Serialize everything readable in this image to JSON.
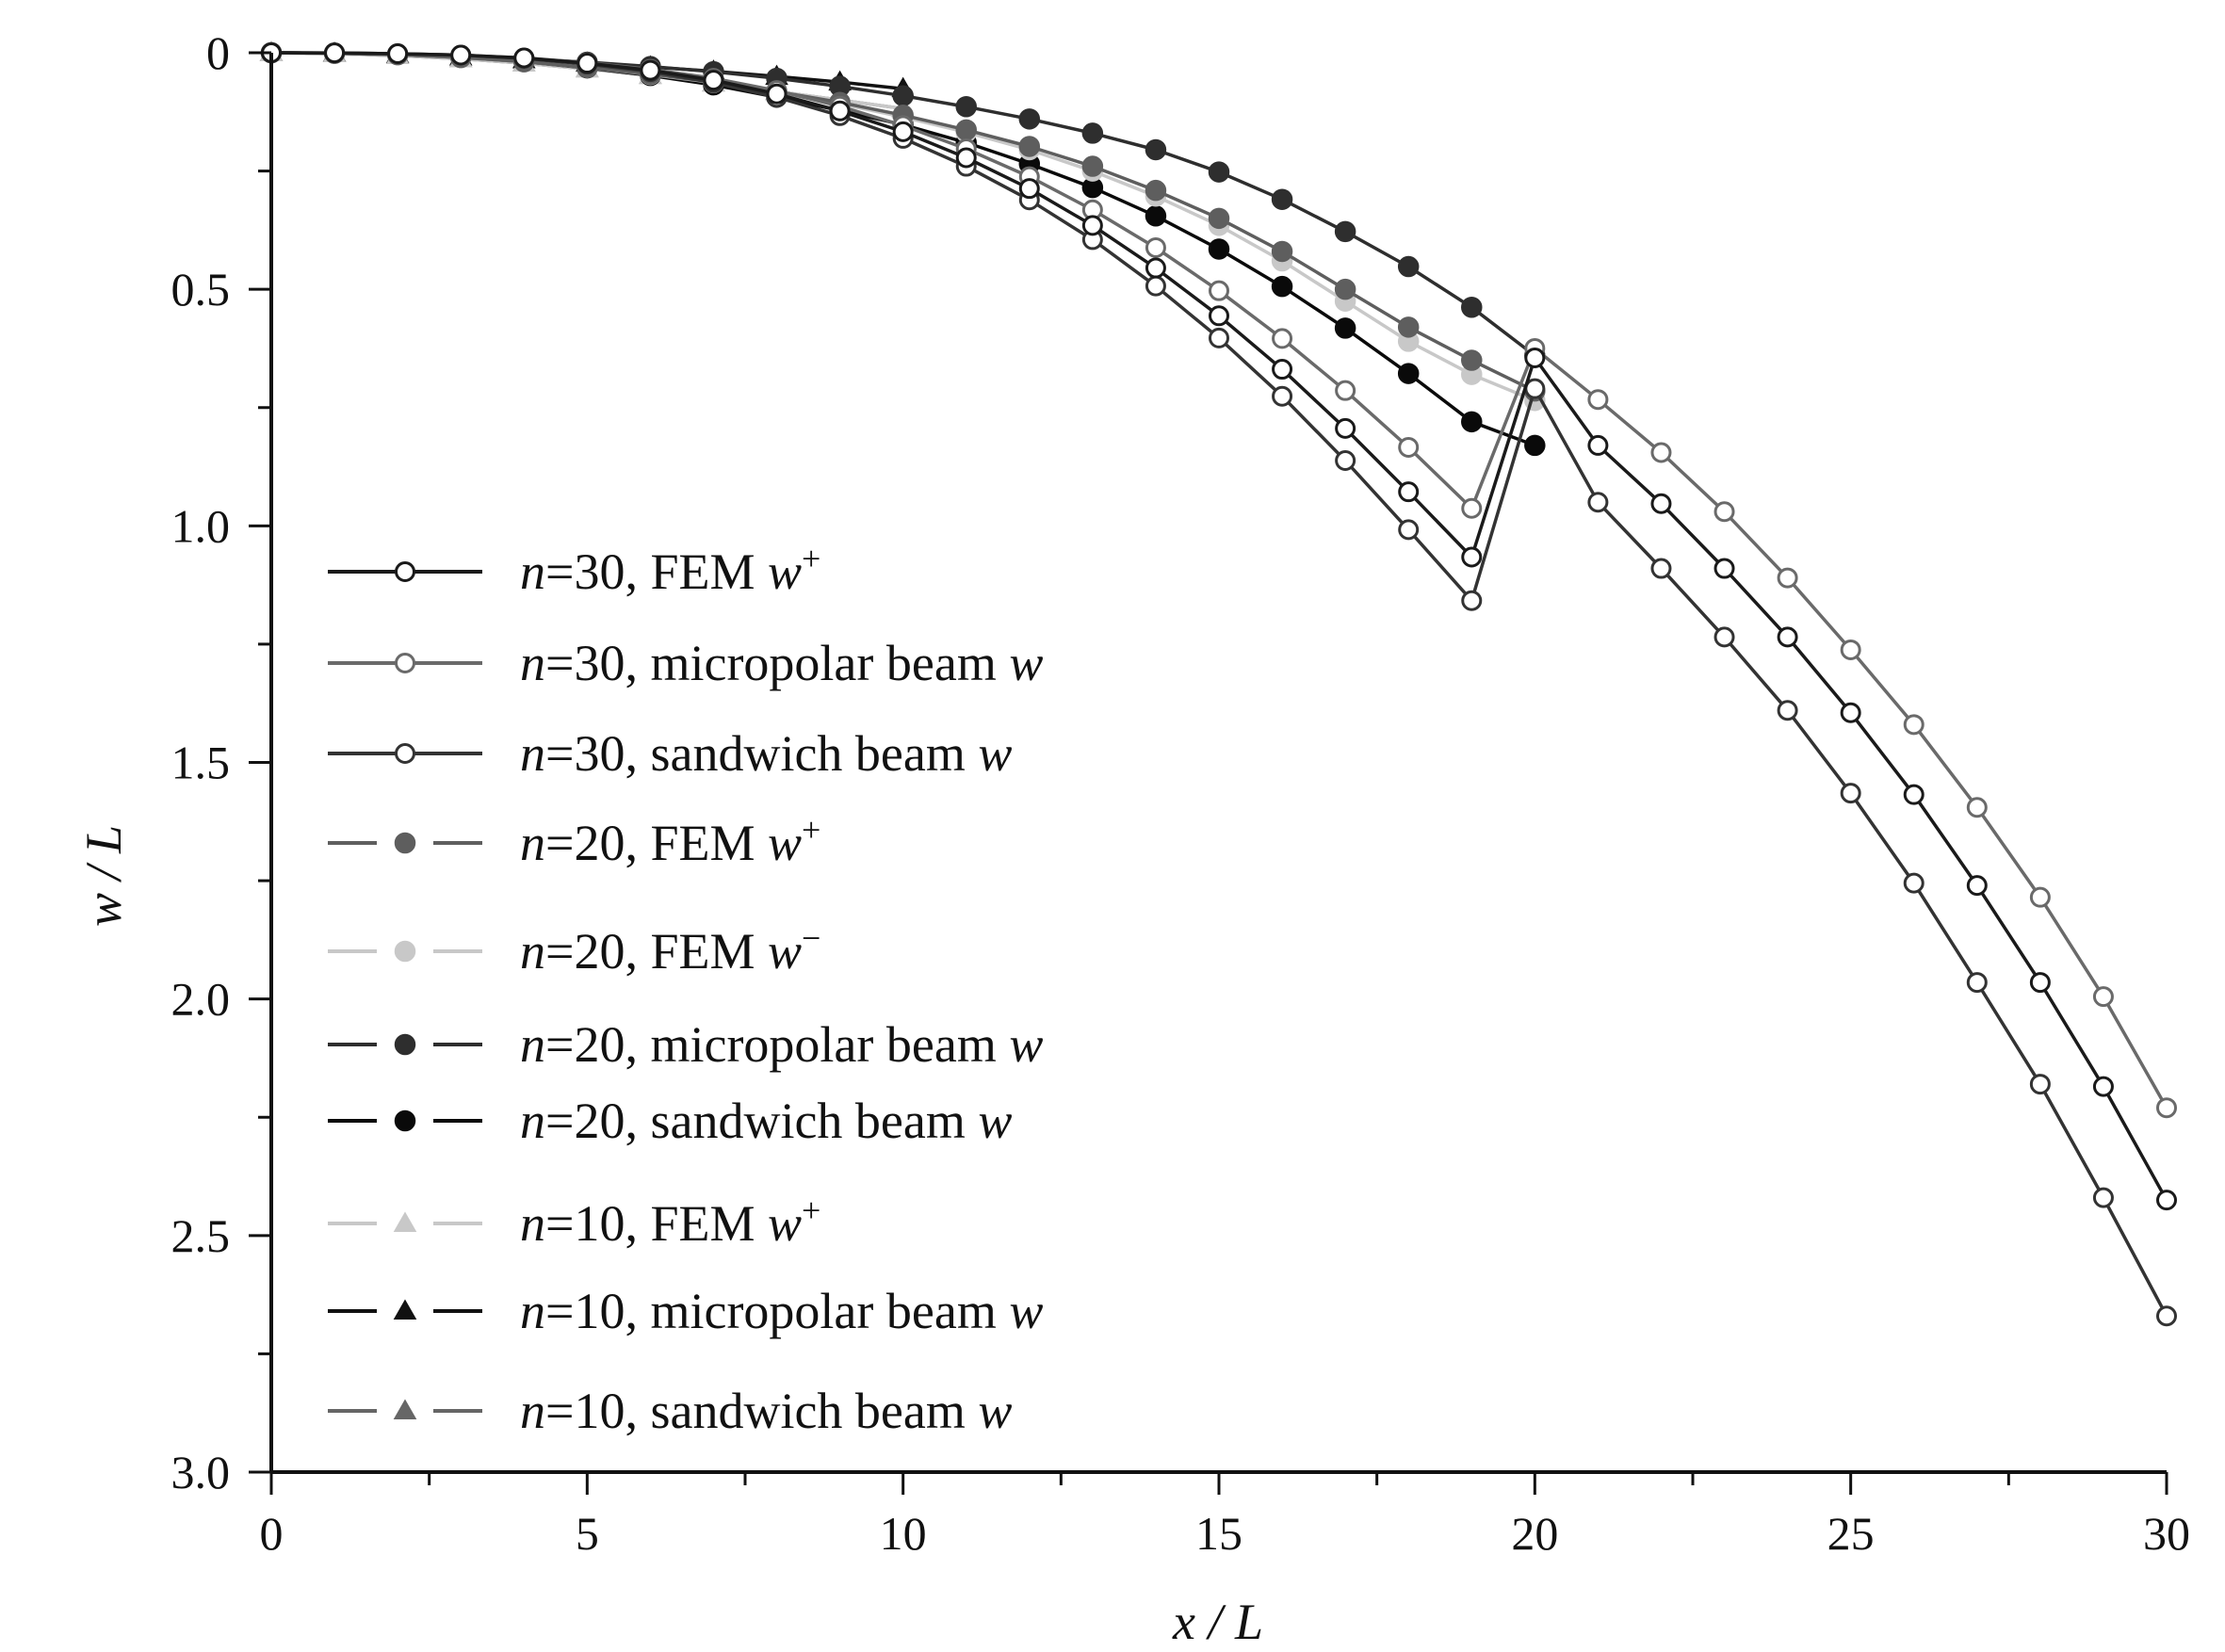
{
  "chart_data": {
    "type": "line",
    "title": "",
    "xlabel": "x / L",
    "ylabel": "w / L",
    "xlim": [
      0,
      30
    ],
    "ylim": [
      0,
      3.0
    ],
    "y_inverted": true,
    "x_ticks": [
      0,
      5,
      10,
      15,
      20,
      25,
      30
    ],
    "y_ticks": [
      "0",
      "0.5",
      "1.0",
      "1.5",
      "2.0",
      "2.5",
      "3.0"
    ],
    "grid": false,
    "legend_position": "left",
    "series": [
      {
        "n": "n",
        "eq": "=30, ",
        "desc": "FEM ",
        "v": "w",
        "sup": "+",
        "color": "#1a1a1a",
        "marker": "circle-open",
        "dashed": false,
        "x": [
          0,
          1,
          2,
          3,
          4,
          5,
          6,
          7,
          8,
          9,
          10,
          11,
          12,
          13,
          14,
          15,
          16,
          17,
          18,
          19,
          20,
          21,
          22,
          23,
          24,
          25,
          26,
          27,
          28,
          29,
          30
        ],
        "y": [
          0,
          0.0003,
          0.002,
          0.005,
          0.011,
          0.022,
          0.037,
          0.058,
          0.087,
          0.123,
          0.167,
          0.222,
          0.287,
          0.365,
          0.455,
          0.556,
          0.669,
          0.794,
          0.928,
          1.066,
          0.645,
          0.83,
          0.953,
          1.09,
          1.235,
          1.395,
          1.568,
          1.76,
          1.965,
          2.185,
          2.425
        ]
      },
      {
        "n": "n",
        "eq": "=30, ",
        "desc": "micropolar beam ",
        "v": "w",
        "sup": "",
        "color": "#6a6a6a",
        "marker": "circle-open",
        "dashed": false,
        "x": [
          0,
          1,
          2,
          3,
          4,
          5,
          6,
          7,
          8,
          9,
          10,
          11,
          12,
          13,
          14,
          15,
          16,
          17,
          18,
          19,
          20,
          21,
          22,
          23,
          24,
          25,
          26,
          27,
          28,
          29,
          30
        ],
        "y": [
          0,
          0.0003,
          0.002,
          0.005,
          0.011,
          0.021,
          0.035,
          0.054,
          0.08,
          0.113,
          0.154,
          0.203,
          0.262,
          0.332,
          0.412,
          0.503,
          0.604,
          0.714,
          0.834,
          0.963,
          0.625,
          0.733,
          0.845,
          0.97,
          1.11,
          1.262,
          1.42,
          1.595,
          1.785,
          1.995,
          2.23
        ]
      },
      {
        "n": "n",
        "eq": "=30, ",
        "desc": "sandwich beam ",
        "v": "w",
        "sup": "",
        "color": "#333333",
        "marker": "circle-open",
        "dashed": false,
        "x": [
          0,
          1,
          2,
          3,
          4,
          5,
          6,
          7,
          8,
          9,
          10,
          11,
          12,
          13,
          14,
          15,
          16,
          17,
          18,
          19,
          20,
          21,
          22,
          23,
          24,
          25,
          26,
          27,
          28,
          29,
          30
        ],
        "y": [
          0,
          0.0003,
          0.002,
          0.005,
          0.012,
          0.024,
          0.04,
          0.063,
          0.094,
          0.133,
          0.181,
          0.24,
          0.311,
          0.395,
          0.493,
          0.603,
          0.726,
          0.862,
          1.008,
          1.158,
          0.71,
          0.95,
          1.09,
          1.235,
          1.39,
          1.565,
          1.755,
          1.965,
          2.18,
          2.42,
          2.67
        ]
      },
      {
        "n": "n",
        "eq": "=20, ",
        "desc": "FEM ",
        "v": "w",
        "sup": "+",
        "color": "#5e5e5e",
        "marker": "circle-filled",
        "dashed": true,
        "x": [
          0,
          1,
          2,
          3,
          4,
          5,
          6,
          7,
          8,
          9,
          10,
          11,
          12,
          13,
          14,
          15,
          16,
          17,
          18,
          19,
          20
        ],
        "y": [
          0,
          0.001,
          0.004,
          0.01,
          0.019,
          0.031,
          0.045,
          0.062,
          0.082,
          0.105,
          0.132,
          0.163,
          0.198,
          0.24,
          0.291,
          0.35,
          0.42,
          0.5,
          0.58,
          0.65,
          0.715
        ]
      },
      {
        "n": "n",
        "eq": "=20, ",
        "desc": "FEM ",
        "v": "w",
        "sup": "−",
        "color": "#c8c8c8",
        "marker": "circle-filled",
        "dashed": true,
        "x": [
          0,
          1,
          2,
          3,
          4,
          5,
          6,
          7,
          8,
          9,
          10,
          11,
          12,
          13,
          14,
          15,
          16,
          17,
          18,
          19,
          20
        ],
        "y": [
          0,
          0.001,
          0.004,
          0.01,
          0.019,
          0.031,
          0.046,
          0.063,
          0.084,
          0.108,
          0.136,
          0.168,
          0.205,
          0.25,
          0.303,
          0.365,
          0.44,
          0.525,
          0.61,
          0.68,
          0.735
        ]
      },
      {
        "n": "n",
        "eq": "=20, ",
        "desc": "micropolar beam ",
        "v": "w",
        "sup": "",
        "color": "#2e2e2e",
        "marker": "circle-filled",
        "dashed": true,
        "x": [
          0,
          1,
          2,
          3,
          4,
          5,
          6,
          7,
          8,
          9,
          10,
          11,
          12,
          13,
          14,
          15,
          16,
          17,
          18,
          19,
          20
        ],
        "y": [
          0,
          0.001,
          0.003,
          0.007,
          0.013,
          0.02,
          0.029,
          0.04,
          0.054,
          0.071,
          0.091,
          0.114,
          0.14,
          0.17,
          0.205,
          0.252,
          0.31,
          0.378,
          0.452,
          0.538,
          0.64
        ]
      },
      {
        "n": "n",
        "eq": "=20, ",
        "desc": "sandwich beam ",
        "v": "w",
        "sup": "",
        "color": "#0a0a0a",
        "marker": "circle-filled",
        "dashed": true,
        "x": [
          0,
          1,
          2,
          3,
          4,
          5,
          6,
          7,
          8,
          9,
          10,
          11,
          12,
          13,
          14,
          15,
          16,
          17,
          18,
          19,
          20
        ],
        "y": [
          0,
          0.001,
          0.004,
          0.01,
          0.019,
          0.032,
          0.048,
          0.068,
          0.094,
          0.122,
          0.152,
          0.19,
          0.235,
          0.285,
          0.345,
          0.415,
          0.494,
          0.582,
          0.678,
          0.78,
          0.83
        ]
      },
      {
        "n": "n",
        "eq": "=10, ",
        "desc": "FEM ",
        "v": "w",
        "sup": "+",
        "color": "#c8c8c8",
        "marker": "triangle",
        "dashed": true,
        "x": [
          0,
          1,
          2,
          3,
          4,
          5,
          6,
          7,
          8,
          9,
          10
        ],
        "y": [
          0,
          0.002,
          0.006,
          0.013,
          0.022,
          0.034,
          0.048,
          0.064,
          0.082,
          0.1,
          0.118
        ]
      },
      {
        "n": "n",
        "eq": "=10, ",
        "desc": "micropolar beam ",
        "v": "w",
        "sup": "",
        "color": "#111111",
        "marker": "triangle",
        "dashed": true,
        "x": [
          0,
          1,
          2,
          3,
          4,
          5,
          6,
          7,
          8,
          9,
          10
        ],
        "y": [
          0,
          0.001,
          0.004,
          0.009,
          0.015,
          0.022,
          0.03,
          0.039,
          0.05,
          0.062,
          0.076
        ]
      },
      {
        "n": "n",
        "eq": "=10, ",
        "desc": "sandwich beam ",
        "v": "w",
        "sup": "",
        "color": "#666666",
        "marker": "triangle",
        "dashed": true,
        "x": [
          0,
          1,
          2,
          3,
          4,
          5,
          6,
          7,
          8,
          9,
          10
        ],
        "y": [
          0,
          0.002,
          0.006,
          0.013,
          0.022,
          0.034,
          0.048,
          0.064,
          0.082,
          0.1,
          0.118
        ]
      }
    ]
  }
}
